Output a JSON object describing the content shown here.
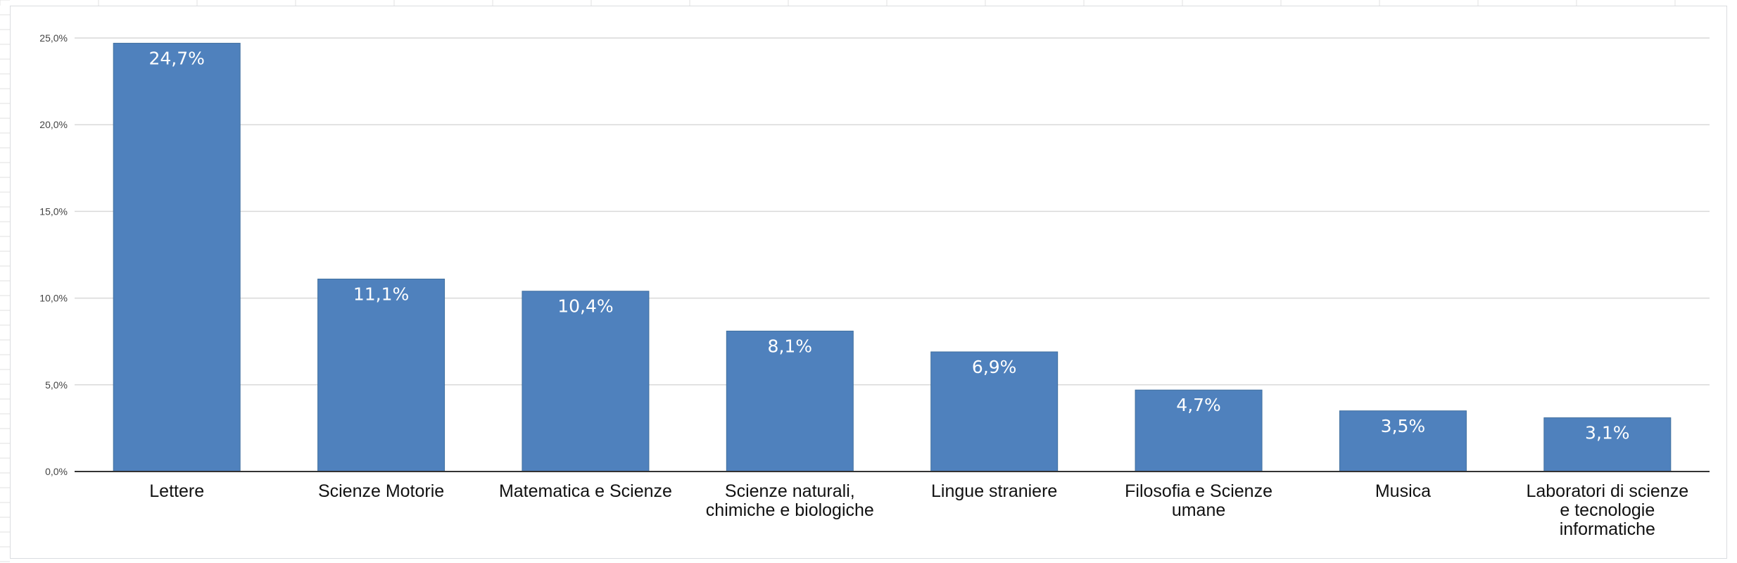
{
  "chart_data": {
    "type": "bar",
    "title": "",
    "xlabel": "",
    "ylabel": "",
    "categories": [
      [
        "Lettere"
      ],
      [
        "Scienze Motorie"
      ],
      [
        "Matematica e Scienze"
      ],
      [
        "Scienze naturali,",
        "chimiche e biologiche"
      ],
      [
        "Lingue straniere"
      ],
      [
        "Filosofia e Scienze",
        "umane"
      ],
      [
        "Musica"
      ],
      [
        "Laboratori di scienze",
        "e tecnologie",
        "informatiche"
      ]
    ],
    "values": [
      24.7,
      11.1,
      10.4,
      8.1,
      6.9,
      4.7,
      3.5,
      3.1
    ],
    "data_labels": [
      "24,7%",
      "11,1%",
      "10,4%",
      "8,1%",
      "6,9%",
      "4,7%",
      "3,5%",
      "3,1%"
    ],
    "ylim": [
      0,
      25
    ],
    "yticks": [
      0,
      5,
      10,
      15,
      20,
      25
    ],
    "ytick_labels": [
      "0,0%",
      "5,0%",
      "10,0%",
      "15,0%",
      "20,0%",
      "25,0%"
    ],
    "grid": true,
    "legend": "none",
    "bar_color": "#4f81bd",
    "gridline_color": "#d9d9d9",
    "axis_color": "#333333"
  }
}
